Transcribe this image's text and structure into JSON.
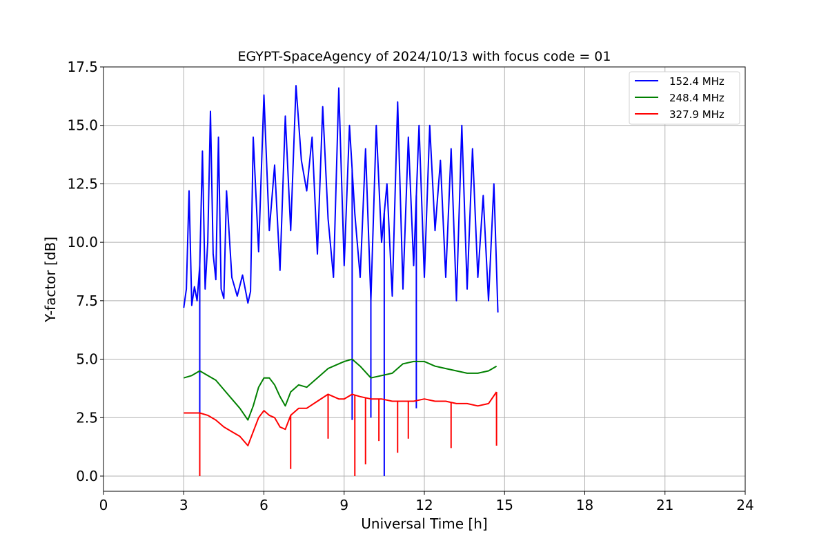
{
  "chart_data": {
    "type": "line",
    "title": "EGYPT-SpaceAgency of 2024/10/13 with focus code = 01",
    "xlabel": "Universal Time [h]",
    "ylabel": "Y-factor [dB]",
    "xlim": [
      0,
      24
    ],
    "ylim": [
      -0.65,
      17.5
    ],
    "xticks": [
      0,
      3,
      6,
      9,
      12,
      15,
      18,
      21,
      24
    ],
    "xtick_labels": [
      "0",
      "3",
      "6",
      "9",
      "12",
      "15",
      "18",
      "21",
      "24"
    ],
    "yticks": [
      0.0,
      2.5,
      5.0,
      7.5,
      10.0,
      12.5,
      15.0,
      17.5
    ],
    "ytick_labels": [
      "0.0",
      "2.5",
      "5.0",
      "7.5",
      "10.0",
      "12.5",
      "15.0",
      "17.5"
    ],
    "grid": true,
    "legend_position": "top-right",
    "series": [
      {
        "name": "152.4 MHz",
        "color": "#0000ff",
        "x": [
          3.0,
          3.1,
          3.2,
          3.3,
          3.4,
          3.5,
          3.6,
          3.7,
          3.8,
          3.9,
          4.0,
          4.1,
          4.2,
          4.3,
          4.4,
          4.5,
          4.6,
          4.8,
          5.0,
          5.2,
          5.4,
          5.5,
          5.6,
          5.8,
          6.0,
          6.2,
          6.4,
          6.6,
          6.8,
          7.0,
          7.2,
          7.4,
          7.6,
          7.8,
          8.0,
          8.2,
          8.4,
          8.6,
          8.8,
          9.0,
          9.2,
          9.4,
          9.6,
          9.8,
          10.0,
          10.2,
          10.4,
          10.6,
          10.8,
          11.0,
          11.2,
          11.4,
          11.6,
          11.8,
          12.0,
          12.2,
          12.4,
          12.6,
          12.8,
          13.0,
          13.2,
          13.4,
          13.6,
          13.8,
          14.0,
          14.2,
          14.4,
          14.6,
          14.75
        ],
        "y": [
          7.2,
          8.0,
          12.2,
          7.3,
          8.1,
          7.5,
          9.0,
          13.9,
          8.0,
          10.0,
          15.6,
          9.5,
          8.4,
          14.5,
          8.0,
          7.6,
          12.2,
          8.5,
          7.7,
          8.6,
          7.4,
          7.9,
          14.5,
          9.6,
          16.3,
          10.5,
          13.3,
          8.8,
          15.4,
          10.5,
          16.7,
          13.5,
          12.2,
          14.5,
          9.5,
          15.8,
          11.0,
          8.5,
          16.6,
          9.0,
          15.0,
          11.2,
          8.5,
          14.0,
          7.5,
          15.0,
          10.0,
          12.5,
          7.7,
          16.0,
          8.0,
          14.5,
          9.0,
          15.0,
          8.5,
          15.0,
          10.5,
          13.5,
          8.5,
          14.0,
          7.5,
          15.0,
          8.0,
          14.0,
          8.5,
          12.0,
          7.5,
          12.5,
          7.0
        ],
        "dips": [
          [
            3.6,
            0.1
          ],
          [
            10.0,
            2.5
          ],
          [
            10.5,
            0.0
          ],
          [
            11.7,
            2.9
          ],
          [
            9.3,
            2.4
          ]
        ]
      },
      {
        "name": "248.4 MHz",
        "color": "#008000",
        "x": [
          3.0,
          3.3,
          3.6,
          3.9,
          4.2,
          4.5,
          4.8,
          5.1,
          5.4,
          5.6,
          5.8,
          6.0,
          6.2,
          6.4,
          6.6,
          6.8,
          7.0,
          7.3,
          7.6,
          8.0,
          8.4,
          8.8,
          9.0,
          9.3,
          9.6,
          10.0,
          10.4,
          10.8,
          11.2,
          11.6,
          12.0,
          12.4,
          12.8,
          13.2,
          13.6,
          14.0,
          14.4,
          14.7
        ],
        "y": [
          4.2,
          4.3,
          4.5,
          4.3,
          4.1,
          3.7,
          3.3,
          2.9,
          2.4,
          3.0,
          3.8,
          4.2,
          4.2,
          3.9,
          3.4,
          3.0,
          3.6,
          3.9,
          3.8,
          4.2,
          4.6,
          4.8,
          4.9,
          5.0,
          4.7,
          4.2,
          4.3,
          4.4,
          4.8,
          4.9,
          4.9,
          4.7,
          4.6,
          4.5,
          4.4,
          4.4,
          4.5,
          4.7
        ]
      },
      {
        "name": "327.9 MHz",
        "color": "#ff0000",
        "x": [
          3.0,
          3.3,
          3.6,
          3.9,
          4.2,
          4.5,
          4.8,
          5.1,
          5.4,
          5.6,
          5.8,
          6.0,
          6.2,
          6.4,
          6.6,
          6.8,
          7.0,
          7.3,
          7.6,
          8.0,
          8.4,
          8.8,
          9.0,
          9.3,
          9.6,
          10.0,
          10.4,
          10.8,
          11.2,
          11.6,
          12.0,
          12.4,
          12.8,
          13.2,
          13.6,
          14.0,
          14.4,
          14.7
        ],
        "y": [
          2.7,
          2.7,
          2.7,
          2.6,
          2.4,
          2.1,
          1.9,
          1.7,
          1.3,
          1.9,
          2.5,
          2.8,
          2.6,
          2.5,
          2.1,
          2.0,
          2.6,
          2.9,
          2.9,
          3.2,
          3.5,
          3.3,
          3.3,
          3.5,
          3.4,
          3.3,
          3.3,
          3.2,
          3.2,
          3.2,
          3.3,
          3.2,
          3.2,
          3.1,
          3.1,
          3.0,
          3.1,
          3.6
        ],
        "dips": [
          [
            3.6,
            0.0
          ],
          [
            7.0,
            0.3
          ],
          [
            8.4,
            1.6
          ],
          [
            9.4,
            0.0
          ],
          [
            9.8,
            0.5
          ],
          [
            10.3,
            1.5
          ],
          [
            11.0,
            1.0
          ],
          [
            11.4,
            1.6
          ],
          [
            13.0,
            1.2
          ],
          [
            14.7,
            1.3
          ]
        ]
      }
    ]
  }
}
